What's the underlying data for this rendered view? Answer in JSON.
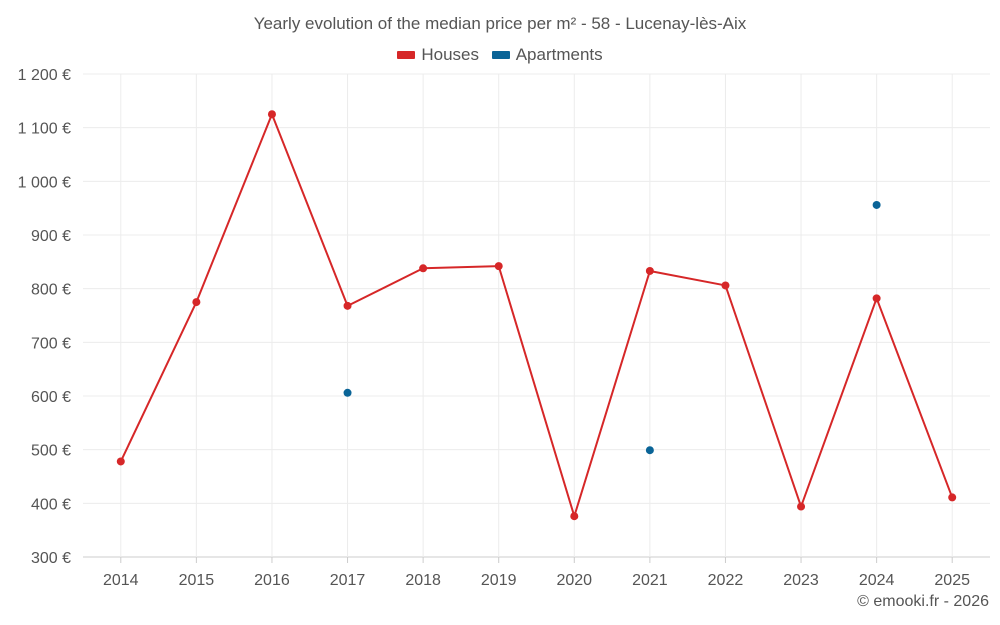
{
  "chart_data": {
    "type": "line",
    "title": "Yearly evolution of the median price per m² - 58 - Lucenay-lès-Aix",
    "xlabel": "",
    "ylabel": "",
    "categories": [
      "2014",
      "2015",
      "2016",
      "2017",
      "2018",
      "2019",
      "2020",
      "2021",
      "2022",
      "2023",
      "2024",
      "2025"
    ],
    "ylim": [
      300,
      1200
    ],
    "yticks": [
      300,
      400,
      500,
      600,
      700,
      800,
      900,
      1000,
      1100,
      1200
    ],
    "ytick_labels": [
      "300 €",
      "400 €",
      "500 €",
      "600 €",
      "700 €",
      "800 €",
      "900 €",
      "1 000 €",
      "1 100 €",
      "1 200 €"
    ],
    "grid": true,
    "legend_position": "top-center",
    "series": [
      {
        "name": "Houses",
        "color": "#d62728",
        "line": true,
        "values": [
          478,
          775,
          1125,
          768,
          838,
          842,
          376,
          833,
          806,
          394,
          782,
          411
        ]
      },
      {
        "name": "Apartments",
        "color": "#0a6497",
        "line": false,
        "values": [
          null,
          null,
          null,
          606,
          null,
          null,
          null,
          499,
          null,
          null,
          956,
          null
        ]
      }
    ]
  },
  "credit": "© emooki.fr - 2026"
}
